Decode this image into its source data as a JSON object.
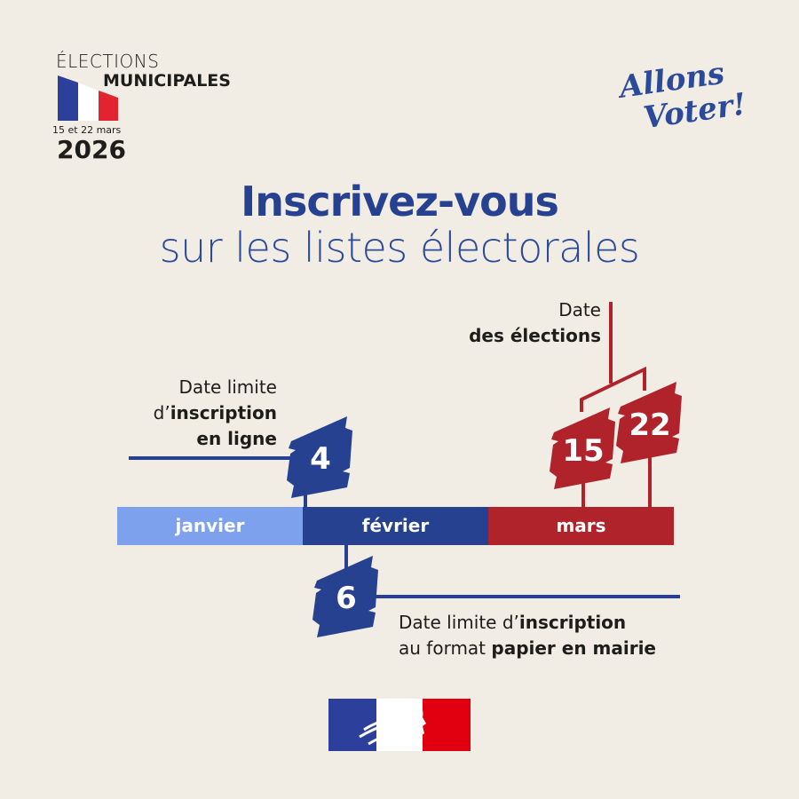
{
  "header": {
    "elections": "ÉLECTIONS",
    "municipales": "MUNICIPALES",
    "dates": "15 et 22 mars",
    "year": "2026",
    "slogan_line1": "Allons",
    "slogan_line2": "Voter!"
  },
  "title": {
    "line1": "Inscrivez-vous",
    "line2": "sur les listes électorales"
  },
  "timeline": {
    "months": [
      "janvier",
      "février",
      "mars"
    ],
    "online": {
      "day": "4",
      "line1": "Date limite",
      "line2_prefix": "d’",
      "line2_bold": "inscription",
      "line3_bold": "en ligne"
    },
    "paper": {
      "day": "6",
      "line1_prefix": "Date limite d’",
      "line1_bold": "inscription",
      "line2_prefix": "au format ",
      "line2_bold": "papier en mairie"
    },
    "elections": {
      "days": [
        "15",
        "22"
      ],
      "line1": "Date",
      "line2_bold": "des élections"
    }
  },
  "colors": {
    "background": "#f1ece4",
    "blue_dark": "#26418f",
    "blue_light": "#7ea1ee",
    "red": "#b0232b"
  },
  "footer": {
    "logo": "republique-francaise-marianne-logo"
  }
}
